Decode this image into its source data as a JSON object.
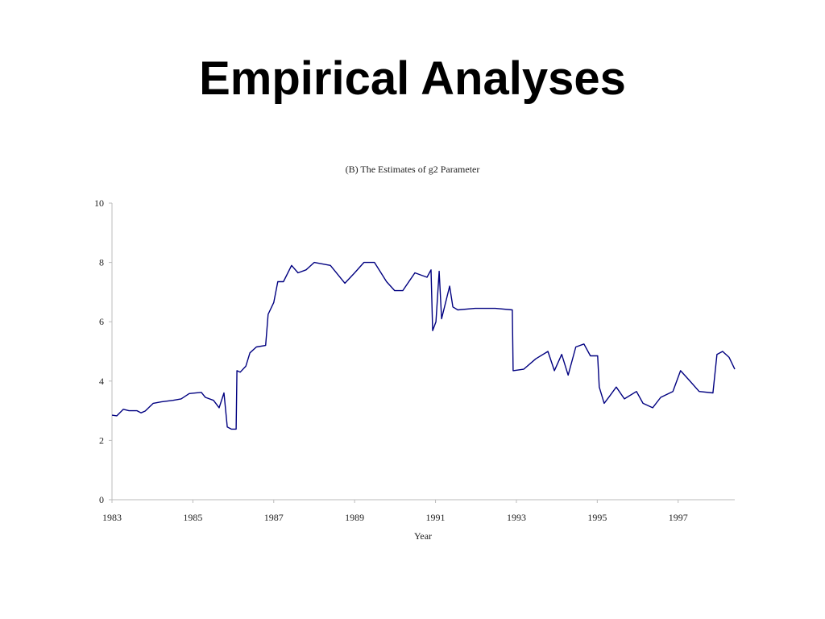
{
  "slide": {
    "title": "Empirical Analyses"
  },
  "chart_data": {
    "type": "line",
    "title": "(B) The Estimates of g2 Parameter",
    "x_label": "Year",
    "x": [
      1983,
      1983.12,
      1983.28,
      1983.42,
      1983.62,
      1983.72,
      1983.82,
      1984.02,
      1984.22,
      1984.51,
      1984.71,
      1984.91,
      1985.21,
      1985.31,
      1985.51,
      1985.65,
      1985.77,
      1985.85,
      1985.95,
      1986.07,
      1986.09,
      1986.17,
      1986.31,
      1986.41,
      1986.57,
      1986.8,
      1986.86,
      1987.0,
      1987.1,
      1987.24,
      1987.44,
      1987.6,
      1987.8,
      1988.0,
      1988.2,
      1988.4,
      1988.76,
      1989.0,
      1989.23,
      1989.49,
      1989.79,
      1989.99,
      1990.19,
      1990.49,
      1990.79,
      1990.89,
      1990.93,
      1991.01,
      1991.09,
      1991.15,
      1991.25,
      1991.35,
      1991.43,
      1991.55,
      1991.98,
      1992.48,
      1992.9,
      1992.92,
      1993.18,
      1993.48,
      1993.78,
      1993.94,
      1994.12,
      1994.28,
      1994.47,
      1994.67,
      1994.83,
      1995.01,
      1995.05,
      1995.17,
      1995.31,
      1995.47,
      1995.67,
      1995.97,
      1996.13,
      1996.37,
      1996.57,
      1996.87,
      1997.06,
      1997.26,
      1997.52,
      1997.86,
      1997.96,
      1998.1,
      1998.26,
      1998.4
    ],
    "series": [
      {
        "name": "g2",
        "color": "#000080",
        "values": [
          2.85,
          2.83,
          3.05,
          3.0,
          3.0,
          2.93,
          2.99,
          3.25,
          3.3,
          3.35,
          3.4,
          3.58,
          3.62,
          3.45,
          3.35,
          3.1,
          3.6,
          2.45,
          2.38,
          2.38,
          4.35,
          4.3,
          4.5,
          4.95,
          5.15,
          5.2,
          6.25,
          6.65,
          7.35,
          7.35,
          7.9,
          7.65,
          7.75,
          8.0,
          7.95,
          7.9,
          7.3,
          7.65,
          8.0,
          8.0,
          7.35,
          7.05,
          7.05,
          7.65,
          7.5,
          7.75,
          5.7,
          6.0,
          7.7,
          6.1,
          6.65,
          7.2,
          6.5,
          6.4,
          6.45,
          6.45,
          6.4,
          4.35,
          4.4,
          4.75,
          5.0,
          4.35,
          4.9,
          4.2,
          5.15,
          5.25,
          4.85,
          4.85,
          3.8,
          3.25,
          3.5,
          3.8,
          3.4,
          3.65,
          3.25,
          3.1,
          3.45,
          3.65,
          4.35,
          4.05,
          3.65,
          3.6,
          4.9,
          5.0,
          4.8,
          4.4
        ]
      }
    ],
    "xlim": [
      1983,
      1998.4
    ],
    "xticks": [
      1983,
      1985,
      1987,
      1989,
      1991,
      1993,
      1995,
      1997
    ],
    "ylim": [
      0,
      10
    ],
    "yticks": [
      0,
      2,
      4,
      6,
      8,
      10
    ],
    "grid": false
  }
}
